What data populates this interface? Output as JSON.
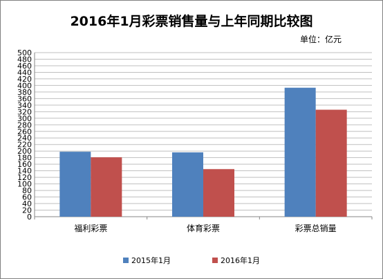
{
  "unit_label": "单位：亿元",
  "chart_data": {
    "type": "bar",
    "title": "2016年1月彩票销售量与上年同期比较图",
    "categories": [
      "福利彩票",
      "体育彩票",
      "彩票总销量"
    ],
    "series": [
      {
        "name": "2015年1月",
        "values": [
          198,
          196,
          393
        ],
        "color": "#4f81bd"
      },
      {
        "name": "2016年1月",
        "values": [
          181,
          145,
          326
        ],
        "color": "#c0504d"
      }
    ],
    "ylim": [
      0,
      500
    ],
    "ytick_step": 20,
    "grid": true,
    "legend_position": "bottom"
  }
}
